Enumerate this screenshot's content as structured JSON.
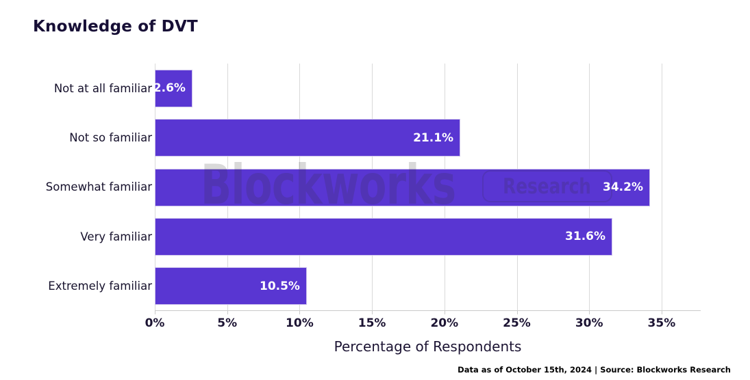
{
  "chart_data": {
    "type": "bar",
    "orientation": "horizontal",
    "title": "Knowledge of DVT",
    "xlabel": "Percentage of Respondents",
    "ylabel": "",
    "categories": [
      "Not at all familiar",
      "Not so familiar",
      "Somewhat familiar",
      "Very familiar",
      "Extremely familiar"
    ],
    "values": [
      2.6,
      21.1,
      34.2,
      31.6,
      10.5
    ],
    "value_labels": [
      "2.6%",
      "21.1%",
      "34.2%",
      "31.6%",
      "10.5%"
    ],
    "xlim": [
      0,
      37.7
    ],
    "xticks": [
      0,
      5,
      10,
      15,
      20,
      25,
      30,
      35
    ],
    "xtick_labels": [
      "0%",
      "5%",
      "10%",
      "15%",
      "20%",
      "25%",
      "30%",
      "35%"
    ],
    "grid": true,
    "legend": "none",
    "bar_color": "#5936d2",
    "bar_label_color": "#ffffff",
    "grid_color": "#d9d9d9",
    "axis_text_color": "#1c1433",
    "title_color": "#170f36"
  },
  "watermark": {
    "brand": "Blockworks",
    "badge": "Research"
  },
  "footer": {
    "note": "Data as of October 15th, 2024 | Source: Blockworks Research"
  }
}
